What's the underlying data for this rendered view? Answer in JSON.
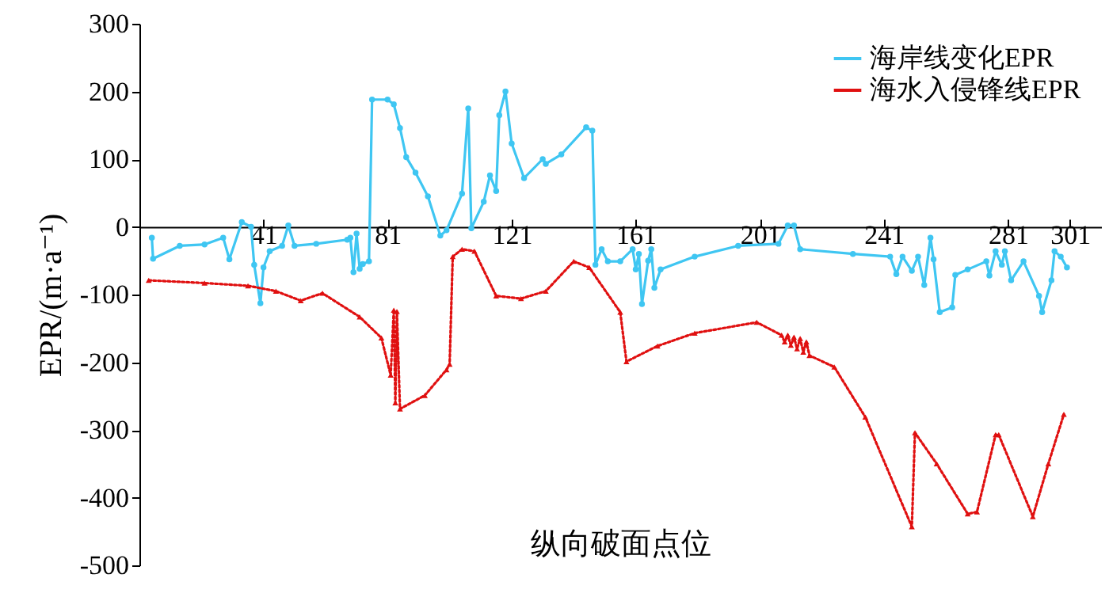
{
  "chart_data": {
    "type": "line",
    "xlabel": "纵向破面点位",
    "ylabel": "EPR/(m·a⁻¹)",
    "xlim": [
      1,
      311
    ],
    "xticks": [
      41,
      81,
      121,
      161,
      201,
      241,
      281,
      301
    ],
    "ylim": [
      -500,
      300
    ],
    "yticks": [
      -500,
      -400,
      -300,
      -200,
      -100,
      0,
      100,
      200,
      300
    ],
    "grid": false,
    "legend": "top right",
    "series": [
      {
        "name": "海岸线变化EPR",
        "color": "#3fc6f2",
        "marker": "circle",
        "line_style": "solid",
        "x": [
          5,
          5.4,
          14,
          22,
          28,
          30,
          34,
          37,
          38,
          40,
          41,
          43,
          47,
          49,
          51,
          58,
          68,
          69,
          70,
          71,
          72,
          73,
          75,
          76,
          81,
          83,
          85,
          87,
          90,
          94,
          98,
          100,
          105,
          107,
          108,
          112,
          114,
          116,
          117,
          119,
          121,
          125,
          131,
          132,
          137,
          145,
          147,
          148,
          150,
          152,
          156,
          160,
          161,
          162,
          163,
          165,
          166,
          167,
          169,
          180,
          194,
          207,
          210,
          212,
          214,
          231,
          243,
          245,
          247,
          250,
          252,
          254,
          256,
          257,
          259,
          263,
          264,
          268,
          274,
          275,
          277,
          279,
          280,
          282,
          286,
          291,
          292,
          295,
          296,
          298,
          300
        ],
        "values": [
          -16,
          -47,
          -28,
          -26,
          -16,
          -48,
          7,
          0,
          -56,
          -113,
          -60,
          -36,
          -28,
          2,
          -28,
          -25,
          -19,
          -16,
          -67,
          -10,
          -62,
          -55,
          -51,
          188,
          188,
          181,
          146,
          103,
          80,
          45,
          -13,
          -5,
          49,
          175,
          -2,
          37,
          76,
          53,
          165,
          200,
          123,
          72,
          100,
          93,
          107,
          147,
          142,
          -56,
          -33,
          -51,
          -51,
          -33,
          -63,
          -40,
          -114,
          -50,
          -33,
          -90,
          -63,
          -44,
          -28,
          -25,
          2,
          2,
          -33,
          -40,
          -44,
          -70,
          -44,
          -65,
          -44,
          -86,
          -16,
          -48,
          -126,
          -119,
          -71,
          -63,
          -51,
          -72,
          -36,
          -56,
          -36,
          -79,
          -51,
          -102,
          -126,
          -79,
          -36,
          -44,
          -60
        ]
      },
      {
        "name": "海水入侵锋线EPR",
        "color": "#e01010",
        "marker": "triangle",
        "line_style": "dotted",
        "x": [
          4,
          22,
          36,
          45,
          53,
          60,
          72,
          79,
          82,
          83,
          83.5,
          84,
          85,
          93,
          100,
          101,
          102,
          105,
          109,
          116,
          124,
          132,
          141,
          146,
          156,
          158,
          168,
          180,
          200,
          208,
          209,
          210,
          211,
          212,
          213,
          214,
          215,
          216,
          217,
          225,
          235,
          250,
          251,
          258,
          268,
          271,
          277,
          278,
          289,
          294,
          299
        ],
        "values": [
          -79,
          -83,
          -87,
          -95,
          -109,
          -98,
          -133,
          -164,
          -219,
          -123,
          -260,
          -125,
          -269,
          -249,
          -211,
          -203,
          -44,
          -33,
          -36,
          -102,
          -106,
          -95,
          -51,
          -60,
          -126,
          -199,
          -176,
          -157,
          -141,
          -160,
          -170,
          -160,
          -175,
          -163,
          -180,
          -165,
          -185,
          -170,
          -190,
          -207,
          -281,
          -443,
          -304,
          -350,
          -424,
          -421,
          -307,
          -307,
          -428,
          -350,
          -277
        ]
      }
    ]
  }
}
